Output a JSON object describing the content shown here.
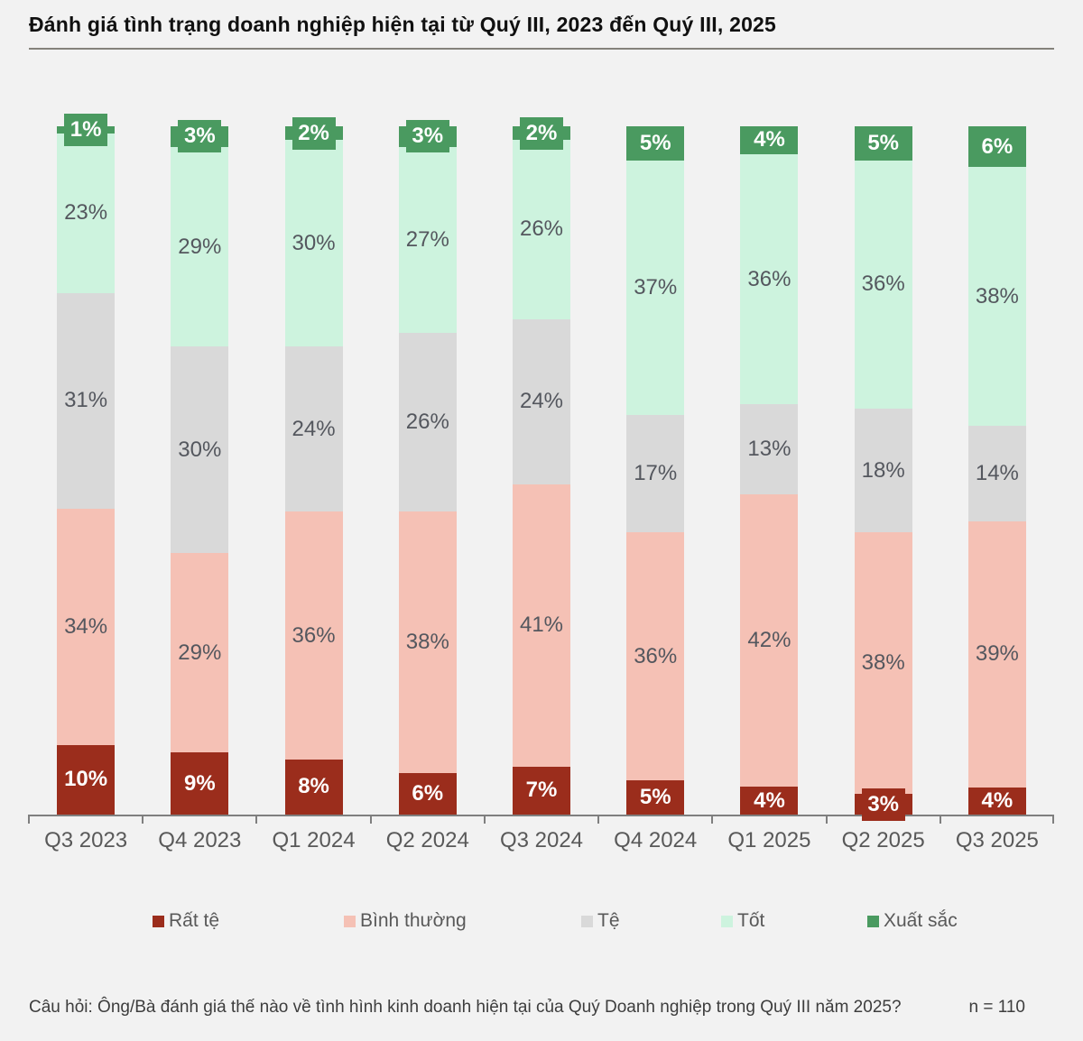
{
  "title": "Đánh giá tình trạng doanh nghiệp hiện tại từ Quý III, 2023 đến Quý III, 2025",
  "footer": {
    "question": "Câu hỏi: Ông/Bà đánh giá thế nào về tình hình kinh doanh hiện tại của Quý Doanh nghiệp trong Quý III năm 2025?",
    "sample_size": "n = 110"
  },
  "colors": {
    "background": "#f2f2f2",
    "axis": "#7f7f7f",
    "label_dark_text": "#54575e",
    "label_light_text": "#ffffff",
    "category_text": "#595959"
  },
  "chart_data": {
    "type": "bar",
    "stacked": true,
    "normalized": true,
    "value_suffix": "%",
    "legend_position": "bottom",
    "title": "Đánh giá tình trạng doanh nghiệp hiện tại từ Quý III, 2023 đến Quý III, 2025",
    "categories": [
      "Q3 2023",
      "Q4 2023",
      "Q1 2024",
      "Q2 2024",
      "Q3 2024",
      "Q4 2024",
      "Q1 2025",
      "Q2 2025",
      "Q3 2025"
    ],
    "series": [
      {
        "id": "rat-te",
        "name": "Rất tệ",
        "color": "#9b2d1c",
        "label_style": "white",
        "values": [
          10,
          9,
          8,
          6,
          7,
          5,
          4,
          3,
          4
        ]
      },
      {
        "id": "binh-thuong",
        "name": "Bình thường",
        "color": "#f5c1b5",
        "label_style": "dark",
        "values": [
          34,
          29,
          36,
          38,
          41,
          36,
          42,
          38,
          39
        ]
      },
      {
        "id": "te",
        "name": "Tệ",
        "color": "#d9d9d9",
        "label_style": "dark",
        "values": [
          31,
          30,
          24,
          26,
          24,
          17,
          13,
          18,
          14
        ]
      },
      {
        "id": "tot",
        "name": "Tốt",
        "color": "#cdf3de",
        "label_style": "dark",
        "values": [
          23,
          29,
          30,
          27,
          26,
          37,
          36,
          36,
          38
        ]
      },
      {
        "id": "xuat-sac",
        "name": "Xuất sắc",
        "color": "#4a9a60",
        "label_style": "white",
        "values": [
          1,
          3,
          2,
          3,
          2,
          5,
          4,
          5,
          6
        ]
      }
    ],
    "ylim": [
      0,
      100
    ]
  }
}
